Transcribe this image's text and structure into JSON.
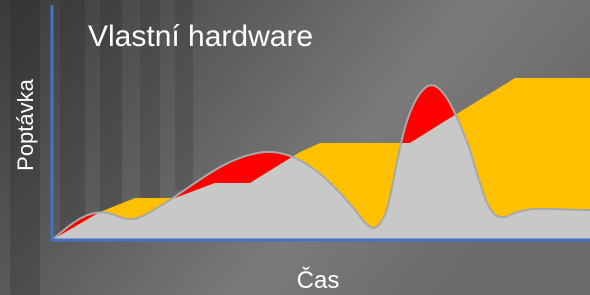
{
  "title": "Vlastní hardware",
  "y_axis_label": "Poptávka",
  "x_axis_label": "Čas"
}
